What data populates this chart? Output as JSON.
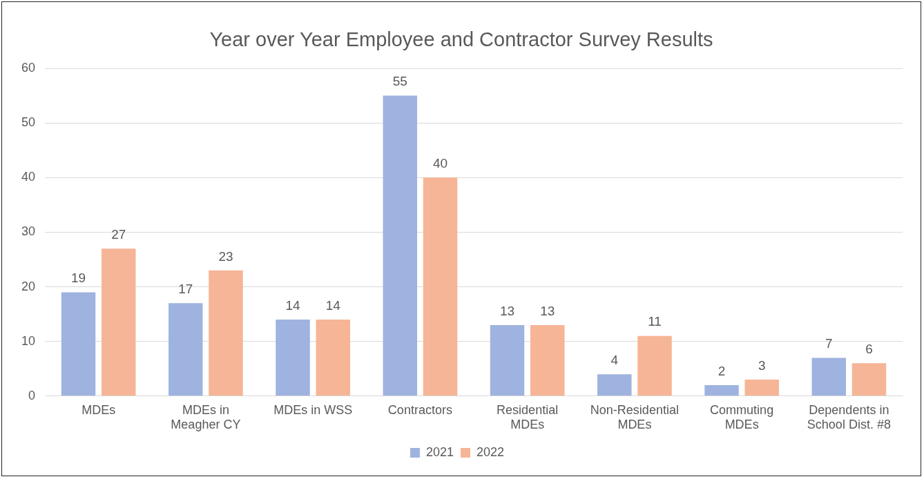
{
  "chart_data": {
    "type": "bar",
    "title": "Year over Year Employee and Contractor Survey Results",
    "categories": [
      "MDEs",
      "MDEs in Meagher CY",
      "MDEs in WSS",
      "Contractors",
      "Residential MDEs",
      "Non-Residential MDEs",
      "Commuting MDEs",
      "Dependents in School Dist. #8"
    ],
    "series": [
      {
        "name": "2021",
        "color": "#9fb3e0",
        "values": [
          19,
          17,
          14,
          55,
          13,
          4,
          2,
          7
        ]
      },
      {
        "name": "2022",
        "color": "#f6b596",
        "values": [
          27,
          23,
          14,
          40,
          13,
          11,
          3,
          6
        ]
      }
    ],
    "ylim": [
      0,
      60
    ],
    "yticks": [
      0,
      10,
      20,
      30,
      40,
      50,
      60
    ],
    "grid": "y",
    "legend": "bottom",
    "data_labels": true
  }
}
